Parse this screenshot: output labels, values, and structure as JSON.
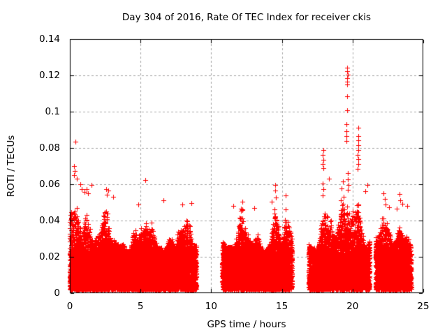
{
  "chart_data": {
    "type": "scatter",
    "title": "Day 304 of 2016, Rate Of TEC Index for receiver ckis",
    "xlabel": "GPS time / hours",
    "ylabel": "ROTI / TECUs",
    "xlim": [
      0,
      25
    ],
    "ylim": [
      0,
      0.14
    ],
    "xticks": {
      "values": [
        0,
        5,
        10,
        15,
        20,
        25
      ],
      "labels": [
        "0",
        "5",
        "10",
        "15",
        "20",
        "25"
      ]
    },
    "yticks": {
      "values": [
        0,
        0.02,
        0.04,
        0.06,
        0.08,
        0.1,
        0.12,
        0.14
      ],
      "labels": [
        "0",
        "0.02",
        "0.04",
        "0.06",
        "0.08",
        "0.1",
        "0.12",
        "0.14"
      ]
    },
    "grid": {
      "show": true,
      "style": "dashed",
      "color": "#a6a6a6"
    },
    "axis_color": "#000000",
    "background": "#ffffff",
    "marker": {
      "shape": "plus",
      "color": "#ff0000",
      "size": 7
    },
    "seed": 2016304,
    "clusters": [
      {
        "x_start": 0.0,
        "x_end": 8.95,
        "points_per_hour": 1050,
        "y_min": 0.002,
        "band_top": 0.021,
        "env_base": 0.023,
        "env_amp": 0.017,
        "peaks": [
          {
            "x": 0.35,
            "w": 0.45,
            "a": 0.02
          },
          {
            "x": 1.2,
            "w": 0.3,
            "a": 0.01
          },
          {
            "x": 2.65,
            "w": 0.3,
            "a": 0.011
          },
          {
            "x": 5.4,
            "w": 0.25,
            "a": 0.008
          },
          {
            "x": 7.9,
            "w": 0.3,
            "a": 0.006
          }
        ]
      },
      {
        "x_start": 10.78,
        "x_end": 15.72,
        "points_per_hour": 1050,
        "y_min": 0.002,
        "band_top": 0.021,
        "env_base": 0.023,
        "env_amp": 0.016,
        "peaks": [
          {
            "x": 12.2,
            "w": 0.25,
            "a": 0.008
          },
          {
            "x": 14.5,
            "w": 0.3,
            "a": 0.011
          },
          {
            "x": 15.3,
            "w": 0.2,
            "a": 0.009
          }
        ]
      },
      {
        "x_start": 16.9,
        "x_end": 21.2,
        "points_per_hour": 1050,
        "y_min": 0.002,
        "band_top": 0.021,
        "env_base": 0.023,
        "env_amp": 0.016,
        "peaks": [
          {
            "x": 17.9,
            "w": 0.25,
            "a": 0.012
          },
          {
            "x": 18.35,
            "w": 0.2,
            "a": 0.01
          },
          {
            "x": 19.7,
            "w": 0.6,
            "a": 0.021
          },
          {
            "x": 20.4,
            "w": 0.3,
            "a": 0.013
          }
        ]
      },
      {
        "x_start": 21.62,
        "x_end": 24.15,
        "points_per_hour": 1000,
        "y_min": 0.002,
        "band_top": 0.021,
        "env_base": 0.023,
        "env_amp": 0.016,
        "peaks": [
          {
            "x": 22.2,
            "w": 0.25,
            "a": 0.01
          },
          {
            "x": 23.3,
            "w": 0.35,
            "a": 0.01
          }
        ]
      }
    ],
    "outliers": [
      [
        0.4,
        0.0835
      ],
      [
        0.28,
        0.07
      ],
      [
        0.33,
        0.0672
      ],
      [
        0.3,
        0.065
      ],
      [
        0.47,
        0.0629
      ],
      [
        0.75,
        0.0601
      ],
      [
        0.83,
        0.0573
      ],
      [
        1.02,
        0.0556
      ],
      [
        1.53,
        0.0597
      ],
      [
        1.2,
        0.0575
      ],
      [
        1.28,
        0.0549
      ],
      [
        2.55,
        0.0572
      ],
      [
        2.72,
        0.0567
      ],
      [
        2.6,
        0.0541
      ],
      [
        3.05,
        0.053
      ],
      [
        5.35,
        0.0623
      ],
      [
        4.85,
        0.049
      ],
      [
        6.62,
        0.0512
      ],
      [
        7.95,
        0.0487
      ],
      [
        8.62,
        0.0496
      ],
      [
        11.55,
        0.0481
      ],
      [
        12.22,
        0.0505
      ],
      [
        13.05,
        0.0468
      ],
      [
        14.52,
        0.0596
      ],
      [
        14.55,
        0.0565
      ],
      [
        14.58,
        0.0527
      ],
      [
        15.28,
        0.0538
      ],
      [
        14.3,
        0.0502
      ],
      [
        17.93,
        0.0789
      ],
      [
        17.9,
        0.076
      ],
      [
        17.95,
        0.0733
      ],
      [
        17.9,
        0.071
      ],
      [
        17.93,
        0.0687
      ],
      [
        17.9,
        0.0604
      ],
      [
        17.95,
        0.0573
      ],
      [
        17.88,
        0.054
      ],
      [
        18.33,
        0.0632
      ],
      [
        19.3,
        0.0615
      ],
      [
        19.2,
        0.0578
      ],
      [
        19.62,
        0.1243
      ],
      [
        19.6,
        0.1224
      ],
      [
        19.64,
        0.1203
      ],
      [
        19.6,
        0.1186
      ],
      [
        19.62,
        0.1166
      ],
      [
        19.6,
        0.1149
      ],
      [
        19.62,
        0.1086
      ],
      [
        19.6,
        0.1008
      ],
      [
        19.55,
        0.093
      ],
      [
        19.57,
        0.0894
      ],
      [
        19.55,
        0.0866
      ],
      [
        19.58,
        0.084
      ],
      [
        19.65,
        0.066
      ],
      [
        19.67,
        0.0627
      ],
      [
        19.7,
        0.0598
      ],
      [
        19.68,
        0.057
      ],
      [
        20.4,
        0.0912
      ],
      [
        20.42,
        0.0867
      ],
      [
        20.4,
        0.0841
      ],
      [
        20.42,
        0.0814
      ],
      [
        20.4,
        0.0787
      ],
      [
        20.38,
        0.0761
      ],
      [
        20.42,
        0.074
      ],
      [
        20.4,
        0.071
      ],
      [
        20.38,
        0.0686
      ],
      [
        21.05,
        0.0597
      ],
      [
        20.92,
        0.0563
      ],
      [
        22.2,
        0.0551
      ],
      [
        22.26,
        0.052
      ],
      [
        22.32,
        0.0487
      ],
      [
        22.6,
        0.0474
      ],
      [
        23.3,
        0.0547
      ],
      [
        23.36,
        0.0511
      ],
      [
        23.5,
        0.0494
      ],
      [
        23.12,
        0.0466
      ],
      [
        23.85,
        0.048
      ]
    ]
  }
}
